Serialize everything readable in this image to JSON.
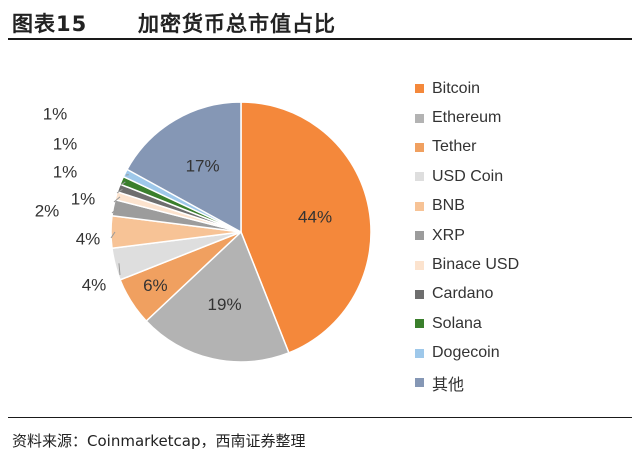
{
  "figure": {
    "number": "图表15",
    "title": "加密货币总市值占比",
    "source": "资料来源：Coinmarketcap，西南证券整理"
  },
  "chart_data": {
    "type": "pie",
    "title": "",
    "labels": [
      "Bitcoin",
      "Ethereum",
      "Tether",
      "USD Coin",
      "BNB",
      "XRP",
      "Binace USD",
      "Cardano",
      "Solana",
      "Dogecoin",
      "其他"
    ],
    "values": [
      44,
      19,
      6,
      4,
      4,
      2,
      1,
      1,
      1,
      1,
      17
    ],
    "value_labels": [
      "44%",
      "19%",
      "6%",
      "4%",
      "4%",
      "2%",
      "1%",
      "1%",
      "1%",
      "1%",
      "17%"
    ],
    "colors": [
      "#F4883B",
      "#B3B3B3",
      "#F0A060",
      "#DEDEDE",
      "#F7C396",
      "#9C9C9C",
      "#FCE3CE",
      "#6E6E6E",
      "#3A7F2C",
      "#9EC8EA",
      "#8597B5"
    ],
    "legend_position": "right",
    "start": "12 o'clock, clockwise"
  }
}
